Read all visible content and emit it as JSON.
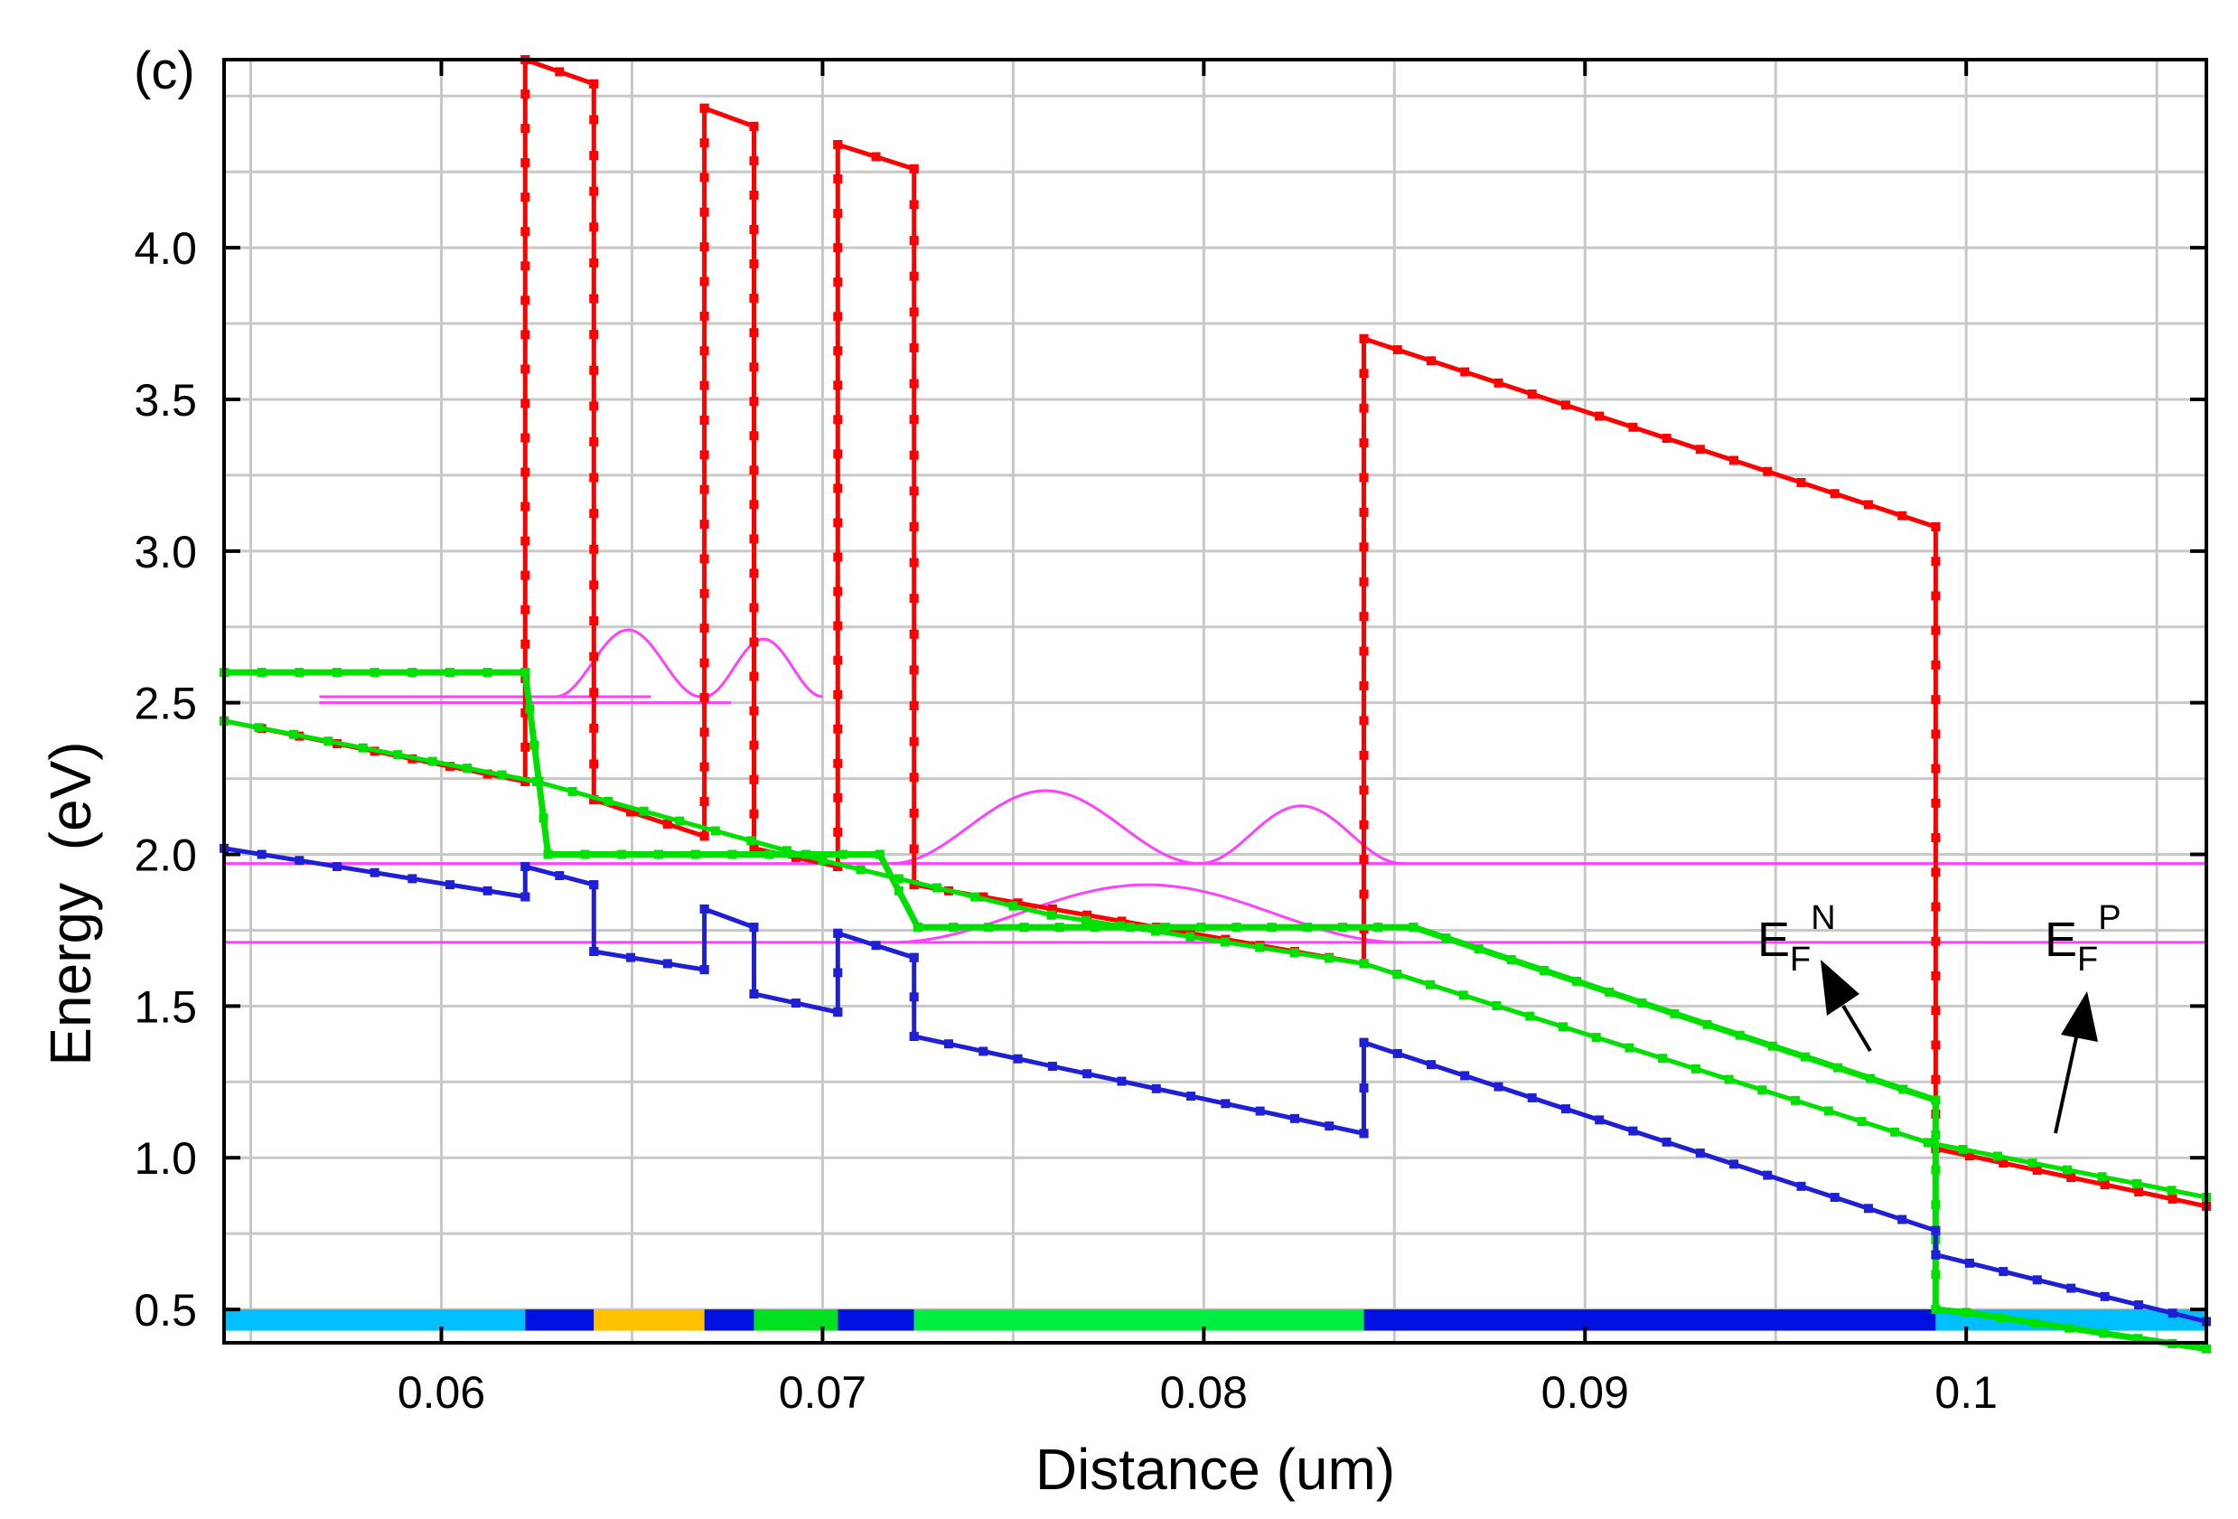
{
  "panel_label": "(c)",
  "annotations": {
    "efn": {
      "base": "E",
      "sub": "F",
      "sup": "N"
    },
    "efp": {
      "base": "E",
      "sub": "F",
      "sup": "P"
    }
  },
  "colors": {
    "conduction_band": "#ff0000",
    "valence_band": "#1f1fd6",
    "quasi_fermi": "#00e000",
    "wavefunction": "#ff40ff",
    "grid": "#c8c8c8"
  },
  "chart_data": {
    "type": "line",
    "title": "",
    "xlabel": "Distance (um)",
    "ylabel": "Energy  (eV)",
    "xlim": [
      0.0543,
      0.1063
    ],
    "ylim": [
      0.39,
      4.62
    ],
    "grid": true,
    "xticks": [
      0.06,
      0.07,
      0.08,
      0.09,
      0.1
    ],
    "xtick_labels": [
      "0.06",
      "0.07",
      "0.08",
      "0.09",
      "0.1"
    ],
    "yticks": [
      0.5,
      1.0,
      1.5,
      2.0,
      2.5,
      3.0,
      3.5,
      4.0
    ],
    "ytick_labels": [
      "0.5",
      "1.0",
      "1.5",
      "2.0",
      "2.5",
      "3.0",
      "3.5",
      "4.0"
    ],
    "series": [
      {
        "color": "#ff0000",
        "role": "conduction-band",
        "x": [
          0.0543,
          0.0622,
          0.0622,
          0.064,
          0.064,
          0.0669,
          0.0669,
          0.0682,
          0.0682,
          0.0704,
          0.0704,
          0.0724,
          0.0724,
          0.0842,
          0.0842,
          0.0992,
          0.0992,
          0.1063
        ],
        "y": [
          2.44,
          2.24,
          4.62,
          4.54,
          2.18,
          2.06,
          4.46,
          4.4,
          2.02,
          1.96,
          4.34,
          4.26,
          1.9,
          1.64,
          3.7,
          3.08,
          1.03,
          0.84
        ]
      },
      {
        "color": "#00e000",
        "role": "quasi-fermi-n",
        "x": [
          0.0543,
          0.0622,
          0.0628,
          0.0715,
          0.0725,
          0.0855,
          0.0992,
          0.0992,
          0.1,
          0.1063
        ],
        "y": [
          2.6,
          2.6,
          2.0,
          2.0,
          1.76,
          1.76,
          1.19,
          0.5,
          0.49,
          0.37
        ]
      },
      {
        "color": "#00e000",
        "role": "quasi-fermi-p",
        "x": [
          0.0543,
          0.0625,
          0.07,
          0.076,
          0.0842,
          0.099,
          0.1063
        ],
        "y": [
          2.44,
          2.24,
          1.98,
          1.8,
          1.64,
          1.05,
          0.87
        ]
      },
      {
        "color": "#1f1fd6",
        "role": "valence-band",
        "x": [
          0.0543,
          0.0622,
          0.0622,
          0.064,
          0.064,
          0.0669,
          0.0669,
          0.0682,
          0.0682,
          0.0704,
          0.0704,
          0.0724,
          0.0724,
          0.0842,
          0.0842,
          0.0992,
          0.0992,
          0.1063
        ],
        "y": [
          2.02,
          1.86,
          1.96,
          1.9,
          1.68,
          1.62,
          1.82,
          1.76,
          1.54,
          1.48,
          1.74,
          1.66,
          1.4,
          1.08,
          1.38,
          0.76,
          0.68,
          0.46
        ]
      }
    ],
    "reference_lines": [
      {
        "color": "#ff40ff",
        "y": 1.97
      },
      {
        "color": "#ff40ff",
        "y": 1.71
      }
    ],
    "wavefunction_lines": [
      {
        "color": "#ff40ff",
        "x": [
          0.0568,
          0.0655
        ],
        "y": 2.52
      },
      {
        "color": "#ff40ff",
        "x": [
          0.0568,
          0.0676
        ],
        "y": 2.5
      }
    ],
    "wavefunction_lobes": [
      {
        "x0": 0.063,
        "x1": 0.0668,
        "base": 2.52,
        "amp": 0.22
      },
      {
        "x0": 0.0669,
        "x1": 0.07,
        "base": 2.52,
        "amp": 0.19
      },
      {
        "x0": 0.0718,
        "x1": 0.0799,
        "base": 1.97,
        "amp": 0.24
      },
      {
        "x0": 0.0799,
        "x1": 0.0852,
        "base": 1.97,
        "amp": 0.19
      },
      {
        "x0": 0.0718,
        "x1": 0.0852,
        "base": 1.71,
        "amp": 0.19
      }
    ],
    "region_bar": {
      "y_range": [
        0.43,
        0.5
      ],
      "segments": [
        {
          "x": [
            0.0543,
            0.0622
          ],
          "color": "#00bfff"
        },
        {
          "x": [
            0.0622,
            0.064
          ],
          "color": "#0010e0"
        },
        {
          "x": [
            0.064,
            0.0669
          ],
          "color": "#ffc000"
        },
        {
          "x": [
            0.0669,
            0.0682
          ],
          "color": "#0010e0"
        },
        {
          "x": [
            0.0682,
            0.0704
          ],
          "color": "#00e020"
        },
        {
          "x": [
            0.0704,
            0.0724
          ],
          "color": "#0010e0"
        },
        {
          "x": [
            0.0724,
            0.0842
          ],
          "color": "#00ee40"
        },
        {
          "x": [
            0.0842,
            0.0992
          ],
          "color": "#0010e0"
        },
        {
          "x": [
            0.0992,
            0.1063
          ],
          "color": "#00bfff"
        }
      ]
    }
  }
}
